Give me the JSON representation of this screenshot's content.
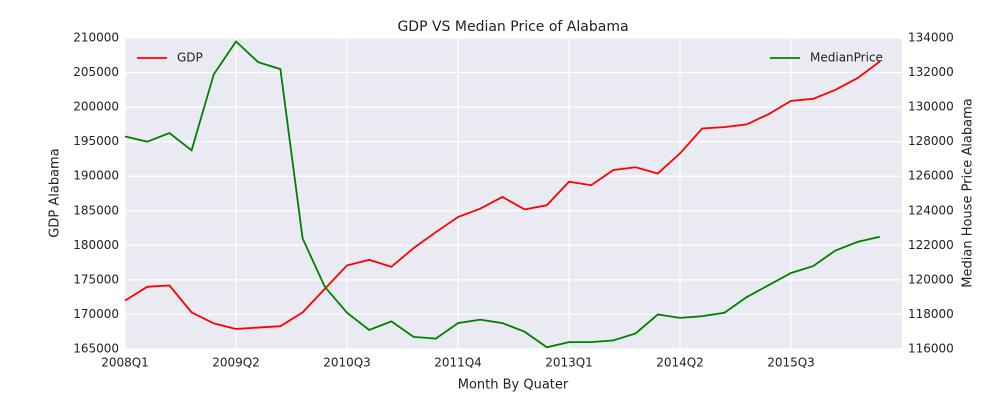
{
  "chart_data": {
    "type": "line",
    "title": "GDP VS Median Price of Alabama",
    "xlabel": "Month By Quater",
    "ylabel": "GDP Alabama",
    "y2label": "Median House Price Alabama",
    "categories": [
      "2008Q1",
      null,
      null,
      null,
      null,
      "2009Q2",
      null,
      null,
      null,
      null,
      "2010Q3",
      null,
      null,
      null,
      null,
      "2011Q4",
      null,
      null,
      null,
      null,
      "2013Q1",
      null,
      null,
      null,
      null,
      "2014Q2",
      null,
      null,
      null,
      null,
      "2015Q3",
      null,
      null,
      null,
      null
    ],
    "series": [
      {
        "name": "GDP",
        "color": "#ff0000",
        "axis": "y",
        "values": [
          172000,
          174000,
          174200,
          170300,
          168700,
          167900,
          168100,
          168300,
          170300,
          173700,
          177100,
          177900,
          176900,
          179600,
          181900,
          184100,
          185300,
          187000,
          185200,
          185800,
          189200,
          188700,
          190900,
          191300,
          190400,
          193300,
          196900,
          197100,
          197500,
          199000,
          200900,
          201200,
          202500,
          204200,
          206600
        ]
      },
      {
        "name": "MedianPrice",
        "color": "#008000",
        "axis": "y2",
        "values": [
          128300,
          128000,
          128500,
          127500,
          131900,
          133800,
          132600,
          132200,
          122400,
          119600,
          118100,
          117100,
          117600,
          116700,
          116600,
          117500,
          117700,
          117500,
          117000,
          116100,
          116400,
          116400,
          116500,
          116900,
          118000,
          117800,
          117900,
          118100,
          119000,
          119700,
          120400,
          120800,
          121700,
          122200,
          122500
        ]
      }
    ],
    "ylim": [
      165000,
      210000
    ],
    "yticks": [
      165000,
      170000,
      175000,
      180000,
      185000,
      190000,
      195000,
      200000,
      205000,
      210000
    ],
    "y2lim": [
      116000,
      134000
    ],
    "y2ticks": [
      116000,
      118000,
      120000,
      122000,
      124000,
      126000,
      128000,
      130000,
      132000,
      134000
    ],
    "grid": true
  }
}
